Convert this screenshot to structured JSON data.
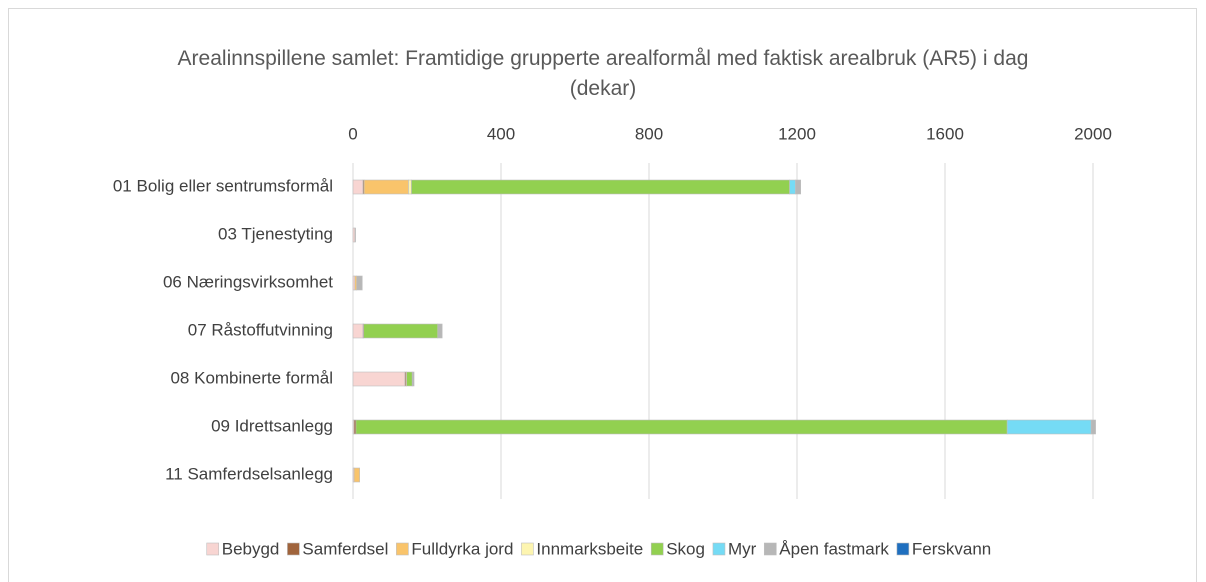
{
  "chart_data": {
    "type": "stacked-bar-horizontal",
    "title": "Arealinnspillene samlet: Framtidige grupperte arealformål med faktisk arealbruk (AR5) i dag (dekar)",
    "categories": [
      "01 Bolig eller sentrumsformål",
      "03 Tjenestyting",
      "06 Næringsvirksomhet",
      "07 Råstoffutvinning",
      "08 Kombinerte formål",
      "09 Idrettsanlegg",
      "11 Samferdselsanlegg"
    ],
    "series": [
      {
        "name": "Bebygd",
        "color": "#f8d5d2",
        "values": [
          27,
          5,
          5,
          27,
          140,
          3,
          3
        ]
      },
      {
        "name": "Samferdsel",
        "color": "#a0643c",
        "values": [
          3,
          0,
          0,
          2,
          3,
          5,
          0
        ]
      },
      {
        "name": "Fulldyrka jord",
        "color": "#f9c46b",
        "values": [
          120,
          0,
          5,
          0,
          2,
          0,
          15
        ]
      },
      {
        "name": "Innmarksbeite",
        "color": "#fdf5b0",
        "values": [
          8,
          0,
          0,
          0,
          0,
          0,
          0
        ]
      },
      {
        "name": "Skog",
        "color": "#92d050",
        "values": [
          1022,
          0,
          0,
          200,
          15,
          1760,
          0
        ]
      },
      {
        "name": "Myr",
        "color": "#75dbf5",
        "values": [
          16,
          0,
          0,
          0,
          0,
          227,
          0
        ]
      },
      {
        "name": "Åpen fastmark",
        "color": "#b7b7b7",
        "values": [
          14,
          2,
          15,
          12,
          5,
          12,
          0
        ]
      },
      {
        "name": "Ferskvann",
        "color": "#1f6fbf",
        "values": [
          0,
          0,
          0,
          0,
          0,
          0,
          0
        ]
      }
    ],
    "xlim": [
      0,
      2200
    ],
    "xticks": [
      0,
      400,
      800,
      1200,
      1600,
      2000
    ],
    "grid": true,
    "legend": "bottom"
  }
}
